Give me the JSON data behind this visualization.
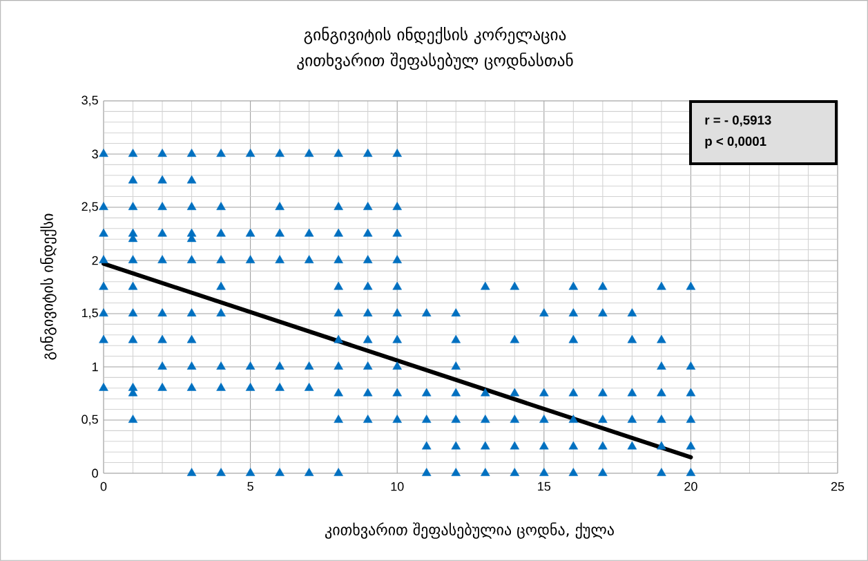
{
  "chart_data": {
    "type": "scatter",
    "title": "გინგივიტის ინდექსის კორელაცია კითხვარით შეფასებულ ცოდნასთან",
    "xlabel": "კითხვარით შეფასებულია ცოდნა, ქულა",
    "ylabel": "გინგივიტის ინდექსი",
    "annotations": [
      "r = - 0,5913",
      "p < 0,0001"
    ],
    "xlim": [
      0,
      25
    ],
    "ylim": [
      0,
      3.5
    ],
    "xticks": [
      0,
      5,
      10,
      15,
      20,
      25
    ],
    "yticks": [
      0,
      {
        "value": 0.5,
        "label": "0,5"
      },
      1,
      {
        "value": 1.5,
        "label": "1,5"
      },
      2,
      {
        "value": 2.5,
        "label": "2,5"
      },
      3,
      {
        "value": 3.5,
        "label": "3,5"
      }
    ],
    "grid": true,
    "series": [
      {
        "marker": "triangle",
        "color": "#0070c0",
        "x": [
          0,
          0,
          0,
          0,
          0,
          0,
          0,
          0,
          1,
          1,
          1,
          1,
          1,
          1,
          1,
          1,
          1,
          1,
          1,
          1,
          2,
          2,
          2,
          2,
          2,
          2,
          2,
          2,
          2,
          3,
          3,
          3,
          3,
          3,
          3,
          3,
          3,
          3,
          3,
          3,
          4,
          4,
          4,
          4,
          4,
          4,
          4,
          4,
          4,
          5,
          5,
          5,
          5,
          5,
          5,
          6,
          6,
          6,
          6,
          6,
          6,
          6,
          7,
          7,
          7,
          7,
          7,
          7,
          8,
          8,
          8,
          8,
          8,
          8,
          8,
          8,
          8,
          8,
          8,
          9,
          9,
          9,
          9,
          9,
          9,
          9,
          9,
          9,
          9,
          10,
          10,
          10,
          10,
          10,
          10,
          10,
          10,
          10,
          10,
          11,
          11,
          11,
          11,
          11,
          12,
          12,
          12,
          12,
          12,
          12,
          12,
          13,
          13,
          13,
          13,
          13,
          14,
          14,
          14,
          14,
          14,
          14,
          15,
          15,
          15,
          15,
          15,
          16,
          16,
          16,
          16,
          16,
          16,
          16,
          17,
          17,
          17,
          17,
          17,
          17,
          18,
          18,
          18,
          18,
          18,
          19,
          19,
          19,
          19,
          19,
          19,
          19,
          20,
          20,
          20,
          20,
          20,
          20
        ],
        "values": [
          3,
          2.5,
          2.25,
          2,
          1.75,
          1.5,
          1.25,
          0.8,
          3,
          2.75,
          2.5,
          2.25,
          2.2,
          2,
          1.75,
          1.5,
          1.25,
          0.8,
          0.75,
          0.5,
          3,
          2.75,
          2.5,
          2.25,
          2,
          1.5,
          1.25,
          1,
          0.8,
          3,
          2.75,
          2.5,
          2.25,
          2.2,
          2,
          1.5,
          1.25,
          1,
          0.8,
          0,
          3,
          2.5,
          2.25,
          2,
          1.75,
          1.5,
          1,
          0.8,
          0,
          3,
          2.25,
          2,
          1,
          0.8,
          0,
          3,
          2.5,
          2.25,
          2,
          1,
          0.8,
          0,
          3,
          2.25,
          2,
          1,
          0.8,
          0,
          3,
          2.5,
          2.25,
          2,
          1.75,
          1.5,
          1.25,
          1,
          0.75,
          0.5,
          0,
          3,
          2.5,
          2.25,
          2,
          1.75,
          1.5,
          1.25,
          1,
          0.75,
          0.5,
          3,
          2.5,
          2.25,
          2,
          1.75,
          1.5,
          1.25,
          1,
          0.75,
          0.5,
          1.5,
          0.75,
          0.5,
          0.25,
          0,
          1.5,
          1.25,
          1,
          0.75,
          0.5,
          0.25,
          0,
          1.75,
          0.75,
          0.5,
          0.25,
          0,
          1.75,
          1.25,
          0.75,
          0.5,
          0.25,
          0,
          1.5,
          0.75,
          0.5,
          0.25,
          0,
          1.75,
          1.5,
          1.25,
          0.75,
          0.5,
          0.25,
          0,
          1.75,
          1.5,
          0.75,
          0.5,
          0.25,
          0,
          1.5,
          1.25,
          0.75,
          0.5,
          0.25,
          1.75,
          1.25,
          1,
          0.75,
          0.5,
          0.25,
          0,
          1.75,
          1,
          0.75,
          0.5,
          0.25,
          0
        ]
      },
      {
        "type": "line",
        "color": "#000000",
        "x": [
          0,
          20
        ],
        "values": [
          1.97,
          0.15
        ]
      }
    ]
  }
}
